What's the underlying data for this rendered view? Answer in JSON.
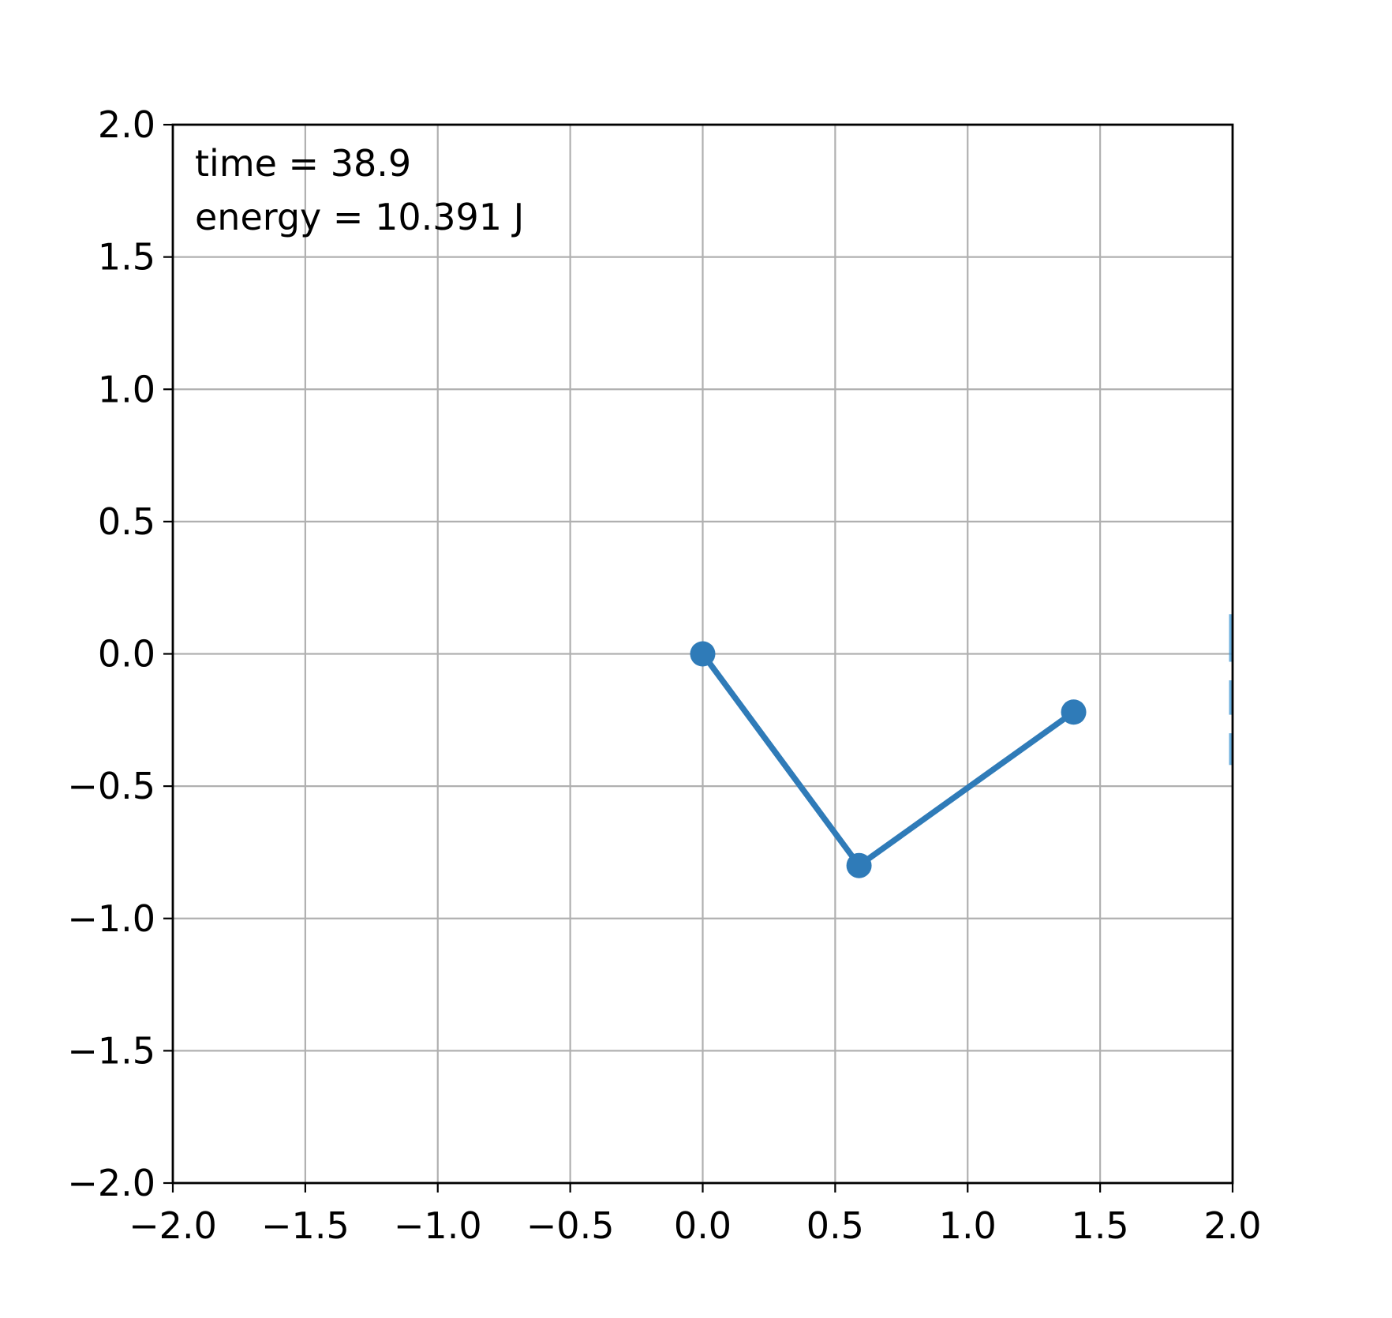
{
  "chart_data": {
    "type": "line",
    "title": "",
    "xlabel": "",
    "ylabel": "",
    "xlim": [
      -2.0,
      2.0
    ],
    "ylim": [
      -2.0,
      2.0
    ],
    "grid": true,
    "x_ticks": [
      "−2.0",
      "−1.5",
      "−1.0",
      "−0.5",
      "0.0",
      "0.5",
      "1.0",
      "1.5",
      "2.0"
    ],
    "y_ticks": [
      "−2.0",
      "−1.5",
      "−1.0",
      "−0.5",
      "0.0",
      "0.5",
      "1.0",
      "1.5",
      "2.0"
    ],
    "x_tick_values": [
      -2.0,
      -1.5,
      -1.0,
      -0.5,
      0.0,
      0.5,
      1.0,
      1.5,
      2.0
    ],
    "y_tick_values": [
      -2.0,
      -1.5,
      -1.0,
      -0.5,
      0.0,
      0.5,
      1.0,
      1.5,
      2.0
    ],
    "annotations": {
      "time_text": "time = 38.9",
      "energy_text": "energy = 10.391 J"
    },
    "series": [
      {
        "color": "#2f7bb8",
        "marker": "circle",
        "x": [
          0.0,
          0.59,
          1.4
        ],
        "y": [
          0.0,
          -0.8,
          -0.22
        ]
      }
    ],
    "edge_fragment": {
      "color": "#4d9fd8",
      "x": 2.0,
      "y_segments": [
        [
          -0.42,
          -0.3
        ],
        [
          -0.23,
          -0.1
        ],
        [
          -0.03,
          0.15
        ]
      ]
    }
  }
}
